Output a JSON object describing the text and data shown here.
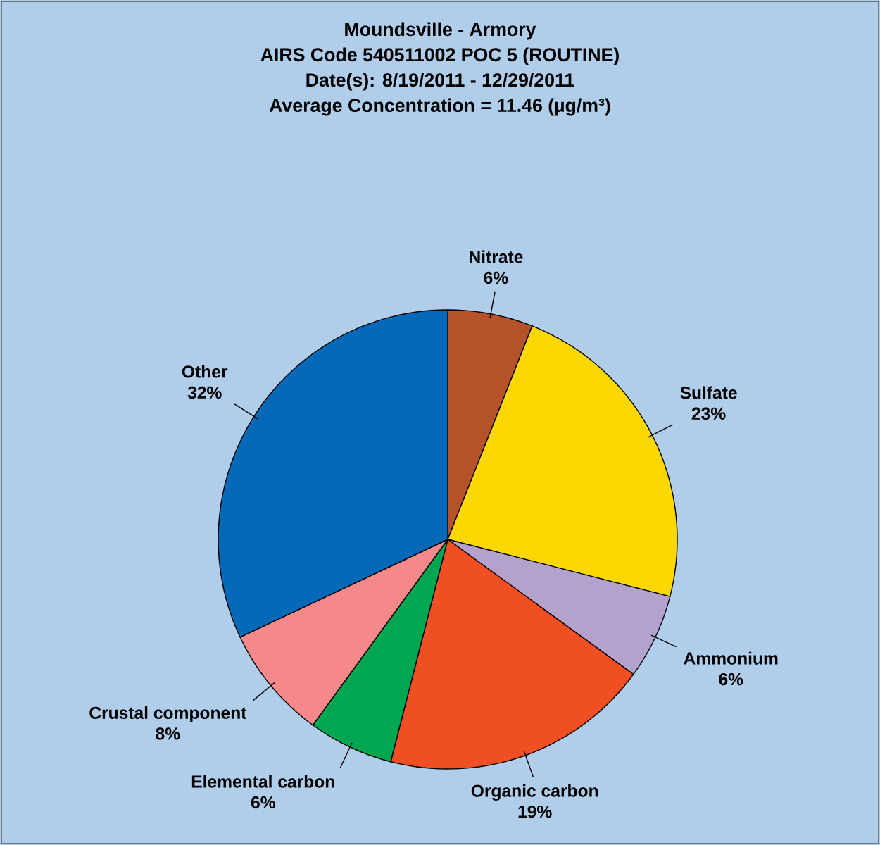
{
  "chart_data": {
    "type": "pie",
    "title": "Moundsville - Armory",
    "subtitle": "AIRS Code 540511002 POC 5 (ROUTINE)",
    "annotations": [
      "Date(s):  8/19/2011 - 12/29/2011",
      "Average Concentration = 11.46 (µg/m³)"
    ],
    "categories": [
      "Nitrate",
      "Sulfate",
      "Ammonium",
      "Organic carbon",
      "Elemental carbon",
      "Crustal component",
      "Other"
    ],
    "values": [
      6,
      23,
      6,
      19,
      6,
      8,
      32
    ],
    "value_labels": [
      "6%",
      "23%",
      "6%",
      "19%",
      "6%",
      "8%",
      "32%"
    ],
    "colors": [
      "#b5522a",
      "#fdd800",
      "#b3a2cc",
      "#f04e23",
      "#00a650",
      "#f4888a",
      "#0669b7"
    ]
  }
}
